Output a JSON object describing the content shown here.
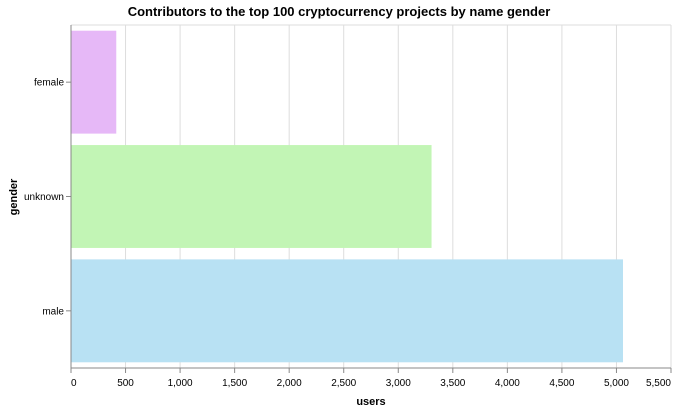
{
  "chart_data": {
    "type": "bar",
    "orientation": "horizontal",
    "title": "Contributors to the top 100 cryptocurrency projects by name gender",
    "xlabel": "users",
    "ylabel": "gender",
    "categories": [
      "female",
      "unknown",
      "male"
    ],
    "values": [
      415,
      3305,
      5060
    ],
    "colors": [
      "#e6b8f7",
      "#c2f5b5",
      "#b8e1f3"
    ],
    "xlim": [
      0,
      5500
    ],
    "x_ticks": [
      0,
      500,
      1000,
      1500,
      2000,
      2500,
      3000,
      3500,
      4000,
      4500,
      5000,
      5500
    ],
    "x_tick_labels": [
      "0",
      "500",
      "1,000",
      "1,500",
      "2,000",
      "2,500",
      "3,000",
      "3,500",
      "4,000",
      "4,500",
      "5,000",
      "5,500"
    ],
    "grid": true,
    "grid_color": "#dddddd",
    "axis_color": "#888888"
  }
}
